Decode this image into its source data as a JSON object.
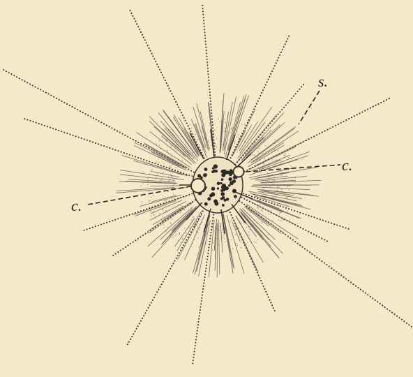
{
  "labels": {
    "top_right": "s.",
    "right": "c.",
    "left": "c."
  }
}
